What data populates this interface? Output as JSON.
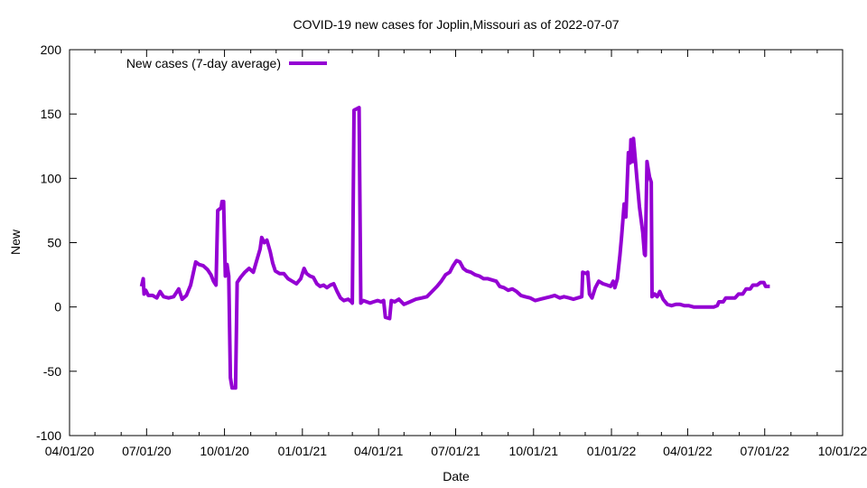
{
  "chart_data": {
    "type": "line",
    "title": "COVID-19 new cases for Joplin,Missouri as of 2022-07-07",
    "xlabel": "Date",
    "ylabel": "New",
    "xlim": [
      "2020-04-01",
      "2022-10-01"
    ],
    "ylim": [
      -100,
      200
    ],
    "yticks": [
      -100,
      -50,
      0,
      50,
      100,
      150,
      200
    ],
    "xticks": [
      {
        "date": "2020-04-01",
        "label": "04/01/20"
      },
      {
        "date": "2020-07-01",
        "label": "07/01/20"
      },
      {
        "date": "2020-10-01",
        "label": "10/01/20"
      },
      {
        "date": "2021-01-01",
        "label": "01/01/21"
      },
      {
        "date": "2021-04-01",
        "label": "04/01/21"
      },
      {
        "date": "2021-07-01",
        "label": "07/01/21"
      },
      {
        "date": "2021-10-01",
        "label": "10/01/21"
      },
      {
        "date": "2022-01-01",
        "label": "01/01/22"
      },
      {
        "date": "2022-04-01",
        "label": "04/01/22"
      },
      {
        "date": "2022-07-01",
        "label": "07/01/22"
      },
      {
        "date": "2022-10-01",
        "label": "10/01/22"
      }
    ],
    "grid": false,
    "legend_position": "top-left",
    "series": [
      {
        "name": "New cases (7-day average)",
        "color": "#9400d3",
        "points": [
          [
            "2020-06-25",
            16
          ],
          [
            "2020-06-27",
            22
          ],
          [
            "2020-06-28",
            10
          ],
          [
            "2020-06-30",
            13
          ],
          [
            "2020-07-03",
            9
          ],
          [
            "2020-07-08",
            9
          ],
          [
            "2020-07-13",
            7
          ],
          [
            "2020-07-17",
            12
          ],
          [
            "2020-07-21",
            8
          ],
          [
            "2020-07-27",
            7
          ],
          [
            "2020-08-02",
            8
          ],
          [
            "2020-08-08",
            14
          ],
          [
            "2020-08-12",
            6
          ],
          [
            "2020-08-17",
            9
          ],
          [
            "2020-08-22",
            17
          ],
          [
            "2020-08-25",
            26
          ],
          [
            "2020-08-28",
            35
          ],
          [
            "2020-09-01",
            33
          ],
          [
            "2020-09-06",
            32
          ],
          [
            "2020-09-11",
            29
          ],
          [
            "2020-09-15",
            25
          ],
          [
            "2020-09-18",
            20
          ],
          [
            "2020-09-21",
            17
          ],
          [
            "2020-09-23",
            75
          ],
          [
            "2020-09-27",
            77
          ],
          [
            "2020-09-28",
            82
          ],
          [
            "2020-09-30",
            82
          ],
          [
            "2020-10-02",
            24
          ],
          [
            "2020-10-04",
            33
          ],
          [
            "2020-10-06",
            24
          ],
          [
            "2020-10-08",
            -55
          ],
          [
            "2020-10-10",
            -63
          ],
          [
            "2020-10-14",
            -63
          ],
          [
            "2020-10-16",
            19
          ],
          [
            "2020-10-20",
            23
          ],
          [
            "2020-10-25",
            27
          ],
          [
            "2020-10-30",
            30
          ],
          [
            "2020-11-04",
            27
          ],
          [
            "2020-11-08",
            36
          ],
          [
            "2020-11-12",
            45
          ],
          [
            "2020-11-14",
            54
          ],
          [
            "2020-11-17",
            50
          ],
          [
            "2020-11-20",
            52
          ],
          [
            "2020-11-24",
            43
          ],
          [
            "2020-11-27",
            34
          ],
          [
            "2020-11-30",
            28
          ],
          [
            "2020-12-05",
            26
          ],
          [
            "2020-12-10",
            26
          ],
          [
            "2020-12-15",
            22
          ],
          [
            "2020-12-20",
            20
          ],
          [
            "2020-12-25",
            18
          ],
          [
            "2020-12-30",
            22
          ],
          [
            "2021-01-03",
            30
          ],
          [
            "2021-01-06",
            26
          ],
          [
            "2021-01-10",
            24
          ],
          [
            "2021-01-14",
            23
          ],
          [
            "2021-01-18",
            18
          ],
          [
            "2021-01-22",
            16
          ],
          [
            "2021-01-26",
            17
          ],
          [
            "2021-01-30",
            15
          ],
          [
            "2021-02-03",
            17
          ],
          [
            "2021-02-07",
            18
          ],
          [
            "2021-02-11",
            12
          ],
          [
            "2021-02-15",
            7
          ],
          [
            "2021-02-19",
            5
          ],
          [
            "2021-02-24",
            6
          ],
          [
            "2021-02-28",
            4
          ],
          [
            "2021-03-01",
            3
          ],
          [
            "2021-03-03",
            153
          ],
          [
            "2021-03-06",
            154
          ],
          [
            "2021-03-09",
            155
          ],
          [
            "2021-03-11",
            3
          ],
          [
            "2021-03-14",
            5
          ],
          [
            "2021-03-18",
            4
          ],
          [
            "2021-03-22",
            3
          ],
          [
            "2021-03-26",
            4
          ],
          [
            "2021-03-31",
            5
          ],
          [
            "2021-04-04",
            4
          ],
          [
            "2021-04-07",
            5
          ],
          [
            "2021-04-09",
            -8
          ],
          [
            "2021-04-14",
            -9
          ],
          [
            "2021-04-16",
            5
          ],
          [
            "2021-04-20",
            4
          ],
          [
            "2021-04-25",
            6
          ],
          [
            "2021-05-01",
            2
          ],
          [
            "2021-05-08",
            4
          ],
          [
            "2021-05-15",
            6
          ],
          [
            "2021-05-22",
            7
          ],
          [
            "2021-05-28",
            8
          ],
          [
            "2021-06-03",
            12
          ],
          [
            "2021-06-09",
            16
          ],
          [
            "2021-06-14",
            20
          ],
          [
            "2021-06-19",
            25
          ],
          [
            "2021-06-24",
            27
          ],
          [
            "2021-06-28",
            32
          ],
          [
            "2021-07-02",
            36
          ],
          [
            "2021-07-06",
            35
          ],
          [
            "2021-07-10",
            30
          ],
          [
            "2021-07-14",
            28
          ],
          [
            "2021-07-19",
            27
          ],
          [
            "2021-07-24",
            25
          ],
          [
            "2021-07-29",
            24
          ],
          [
            "2021-08-03",
            22
          ],
          [
            "2021-08-08",
            22
          ],
          [
            "2021-08-13",
            21
          ],
          [
            "2021-08-18",
            20
          ],
          [
            "2021-08-22",
            16
          ],
          [
            "2021-08-27",
            15
          ],
          [
            "2021-09-01",
            13
          ],
          [
            "2021-09-06",
            14
          ],
          [
            "2021-09-11",
            12
          ],
          [
            "2021-09-16",
            9
          ],
          [
            "2021-09-21",
            8
          ],
          [
            "2021-09-27",
            7
          ],
          [
            "2021-10-03",
            5
          ],
          [
            "2021-10-09",
            6
          ],
          [
            "2021-10-15",
            7
          ],
          [
            "2021-10-21",
            8
          ],
          [
            "2021-10-26",
            9
          ],
          [
            "2021-11-01",
            7
          ],
          [
            "2021-11-06",
            8
          ],
          [
            "2021-11-12",
            7
          ],
          [
            "2021-11-17",
            6
          ],
          [
            "2021-11-22",
            7
          ],
          [
            "2021-11-27",
            8
          ],
          [
            "2021-11-28",
            27
          ],
          [
            "2021-12-02",
            26
          ],
          [
            "2021-12-04",
            27
          ],
          [
            "2021-12-06",
            10
          ],
          [
            "2021-12-09",
            7
          ],
          [
            "2021-12-13",
            15
          ],
          [
            "2021-12-17",
            20
          ],
          [
            "2021-12-22",
            18
          ],
          [
            "2021-12-27",
            17
          ],
          [
            "2021-12-31",
            16
          ],
          [
            "2022-01-03",
            20
          ],
          [
            "2022-01-05",
            15
          ],
          [
            "2022-01-08",
            22
          ],
          [
            "2022-01-11",
            40
          ],
          [
            "2022-01-13",
            55
          ],
          [
            "2022-01-16",
            80
          ],
          [
            "2022-01-18",
            70
          ],
          [
            "2022-01-21",
            120
          ],
          [
            "2022-01-23",
            112
          ],
          [
            "2022-01-24",
            130
          ],
          [
            "2022-01-26",
            113
          ],
          [
            "2022-01-27",
            131
          ],
          [
            "2022-01-29",
            116
          ],
          [
            "2022-01-31",
            100
          ],
          [
            "2022-02-03",
            78
          ],
          [
            "2022-02-07",
            58
          ],
          [
            "2022-02-09",
            41
          ],
          [
            "2022-02-10",
            40
          ],
          [
            "2022-02-12",
            113
          ],
          [
            "2022-02-15",
            101
          ],
          [
            "2022-02-17",
            97
          ],
          [
            "2022-02-18",
            8
          ],
          [
            "2022-02-21",
            10
          ],
          [
            "2022-02-24",
            8
          ],
          [
            "2022-02-27",
            12
          ],
          [
            "2022-03-03",
            6
          ],
          [
            "2022-03-08",
            2
          ],
          [
            "2022-03-13",
            1
          ],
          [
            "2022-03-18",
            2
          ],
          [
            "2022-03-23",
            2
          ],
          [
            "2022-03-28",
            1
          ],
          [
            "2022-04-02",
            1
          ],
          [
            "2022-04-08",
            0
          ],
          [
            "2022-04-14",
            0
          ],
          [
            "2022-04-20",
            0
          ],
          [
            "2022-04-26",
            0
          ],
          [
            "2022-05-02",
            0
          ],
          [
            "2022-05-06",
            1
          ],
          [
            "2022-05-08",
            4
          ],
          [
            "2022-05-13",
            4
          ],
          [
            "2022-05-16",
            7
          ],
          [
            "2022-05-23",
            7
          ],
          [
            "2022-05-27",
            7
          ],
          [
            "2022-05-31",
            10
          ],
          [
            "2022-06-05",
            10
          ],
          [
            "2022-06-09",
            14
          ],
          [
            "2022-06-14",
            14
          ],
          [
            "2022-06-17",
            17
          ],
          [
            "2022-06-22",
            17
          ],
          [
            "2022-06-26",
            19
          ],
          [
            "2022-06-30",
            19
          ],
          [
            "2022-07-02",
            16
          ],
          [
            "2022-07-07",
            16
          ]
        ]
      }
    ]
  }
}
